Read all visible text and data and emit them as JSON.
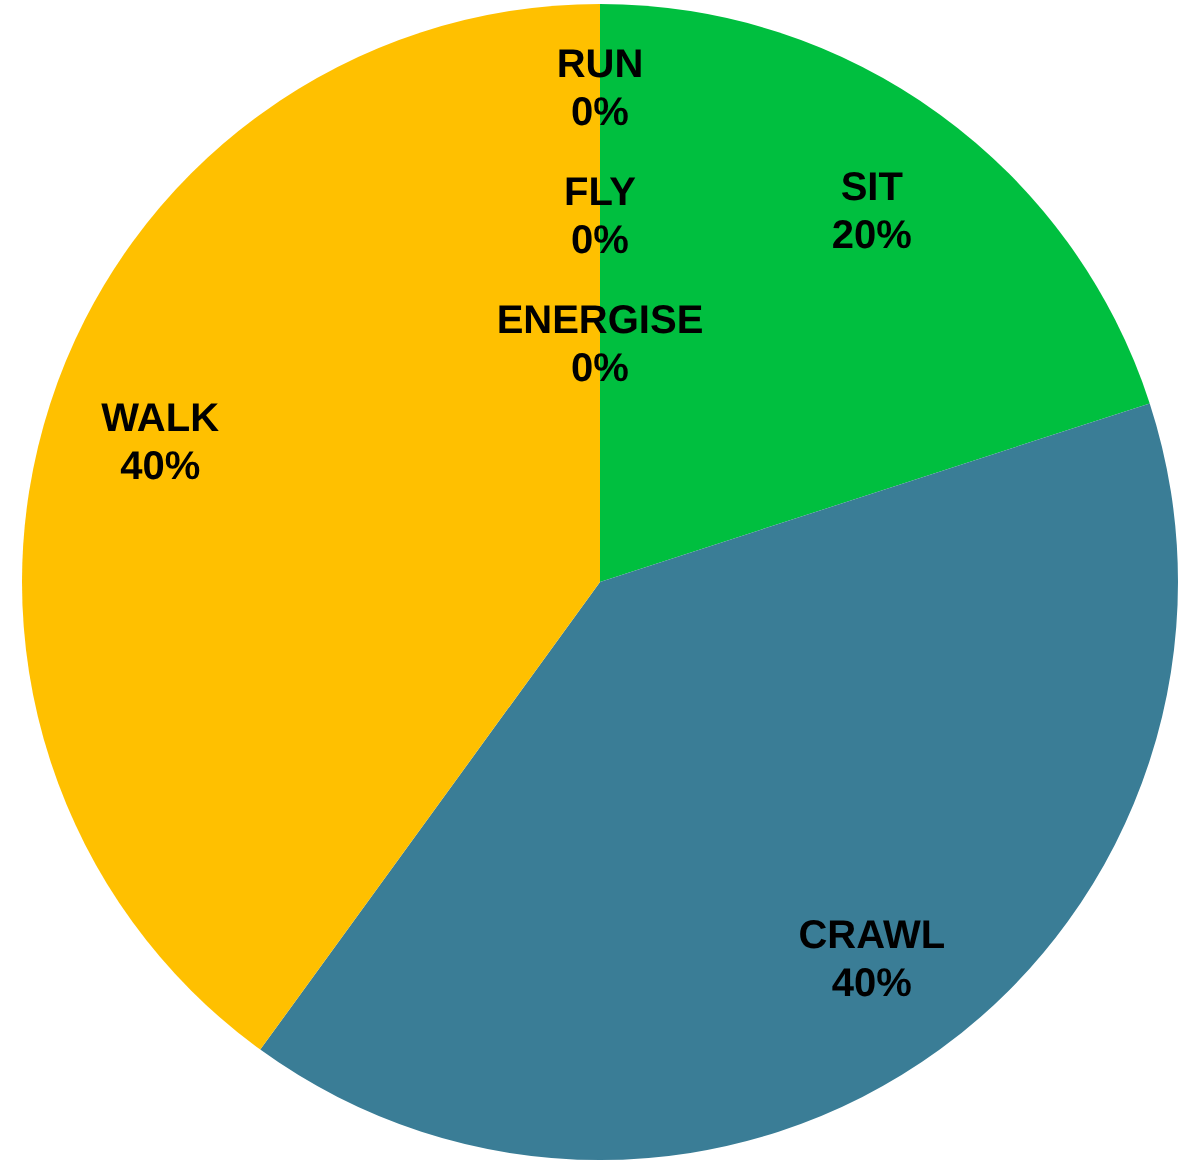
{
  "chart_data": {
    "type": "pie",
    "categories": [
      "SIT",
      "CRAWL",
      "WALK",
      "ENERGISE",
      "FLY",
      "RUN"
    ],
    "values": [
      20,
      40,
      40,
      0,
      0,
      0
    ],
    "value_labels": [
      "20%",
      "40%",
      "40%",
      "0%",
      "0%",
      "0%"
    ],
    "colors": [
      "#00bf3f",
      "#3a7d96",
      "#ffc000",
      "#7f7f7f",
      "#a5a5a5",
      "#4472c4"
    ]
  }
}
